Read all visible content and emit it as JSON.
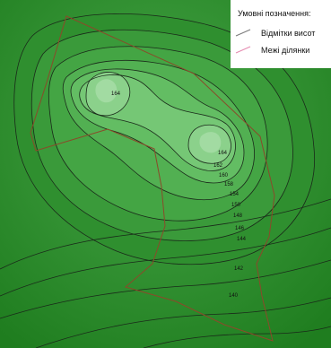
{
  "legend": {
    "title": "Умовні позначення:",
    "items": [
      {
        "label": "Відмітки висот",
        "symbol": "elevation-contour",
        "color": "#7a7a7a"
      },
      {
        "label": "Межі ділянки",
        "symbol": "parcel-boundary",
        "color": "#e58ab0"
      }
    ]
  },
  "colors": {
    "terrain_low": "#1f7d1f",
    "terrain_high": "#9fd69f",
    "contour": "#1a2a1a",
    "boundary": "#8b4a2a"
  },
  "contours": [
    {
      "label": "164"
    },
    {
      "label": "164"
    },
    {
      "label": "162"
    },
    {
      "label": "160"
    },
    {
      "label": "158"
    },
    {
      "label": "154"
    },
    {
      "label": "150"
    },
    {
      "label": "148"
    },
    {
      "label": "146"
    },
    {
      "label": "144"
    },
    {
      "label": "142"
    },
    {
      "label": "140"
    }
  ]
}
